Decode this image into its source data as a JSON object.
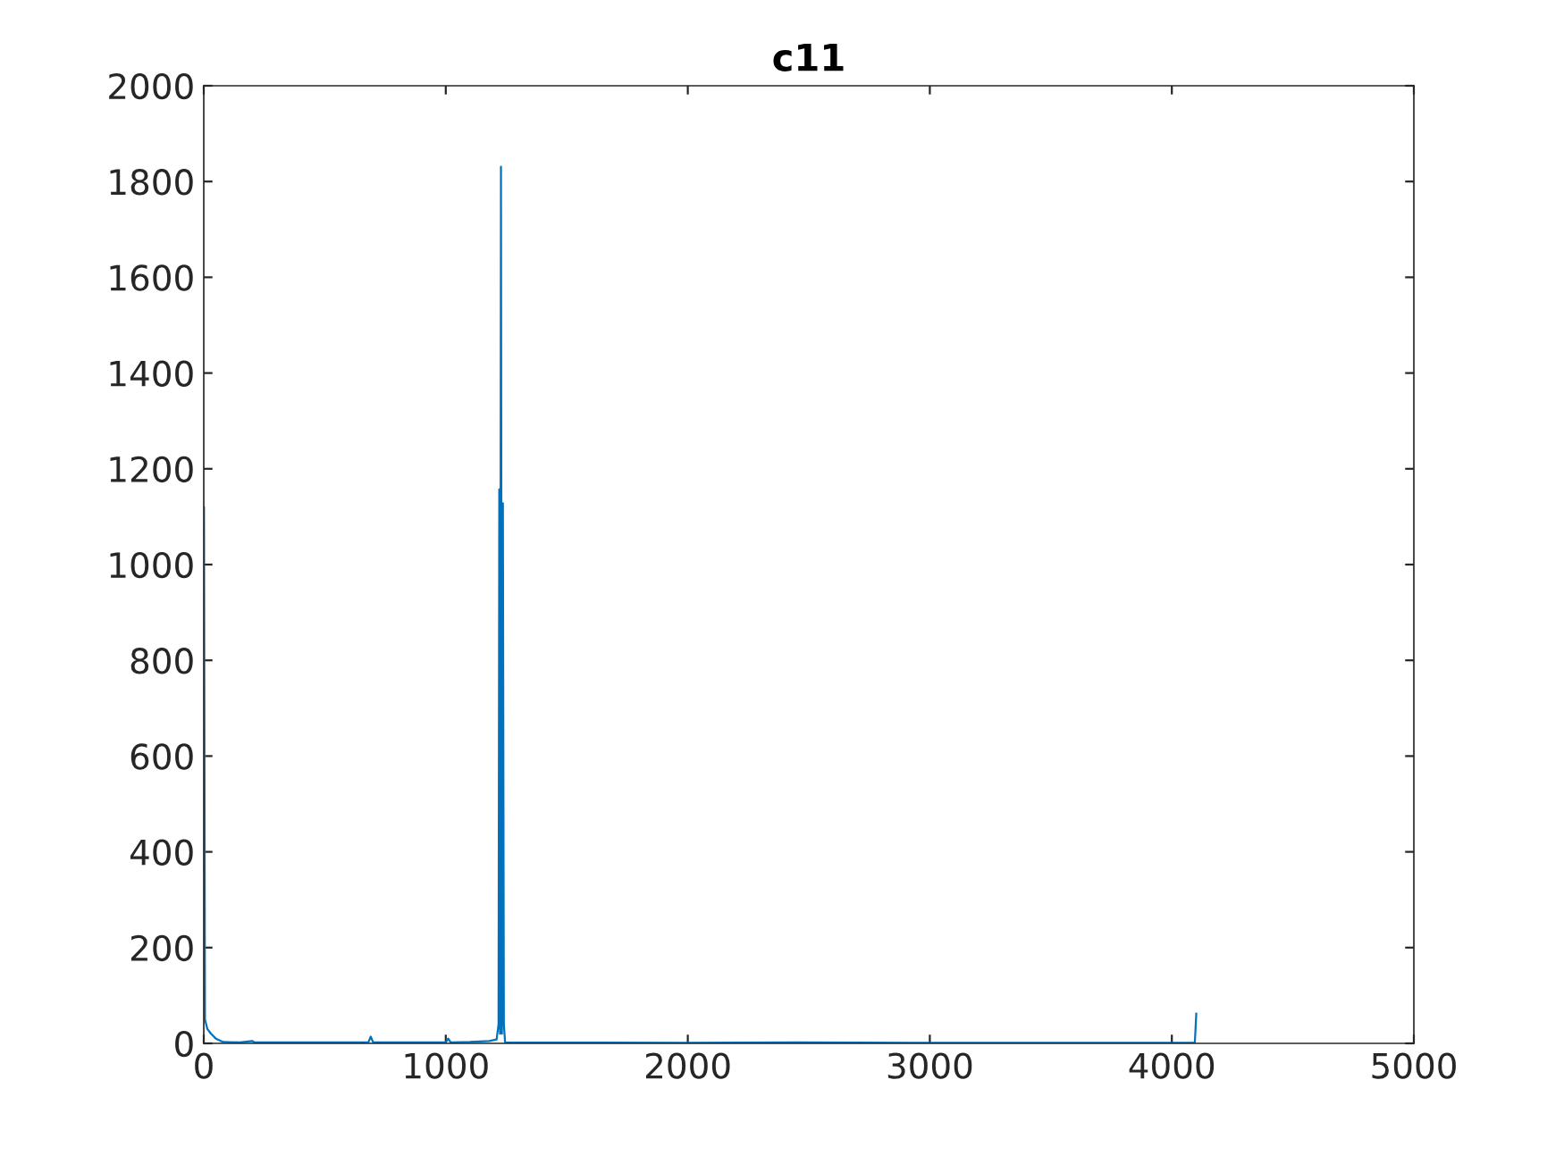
{
  "chart_data": {
    "type": "line",
    "title": "c11",
    "x": [
      1,
      5,
      15,
      30,
      50,
      80,
      150,
      200,
      210,
      400,
      680,
      690,
      700,
      1000,
      1010,
      1020,
      1100,
      1180,
      1210,
      1218,
      1221,
      1224,
      1228,
      1232,
      1236,
      1240,
      1245,
      2000,
      2450,
      3000,
      4095,
      4101
    ],
    "series": [
      {
        "color": "#0072bd",
        "values": [
          1119,
          50,
          30,
          20,
          10,
          3,
          2,
          5,
          2,
          2,
          2,
          14,
          2,
          2,
          10,
          2,
          3,
          5,
          8,
          40,
          1157,
          20,
          1831,
          20,
          1128,
          40,
          2,
          1,
          2,
          1,
          1,
          62
        ]
      }
    ],
    "xlim": [
      0,
      5000
    ],
    "xticks": [
      0,
      1000,
      2000,
      3000,
      4000,
      5000
    ],
    "ylim": [
      0,
      2000
    ],
    "yticks": [
      0,
      200,
      400,
      600,
      800,
      1000,
      1200,
      1400,
      1600,
      1800,
      2000
    ],
    "grid": false,
    "legend": false
  }
}
